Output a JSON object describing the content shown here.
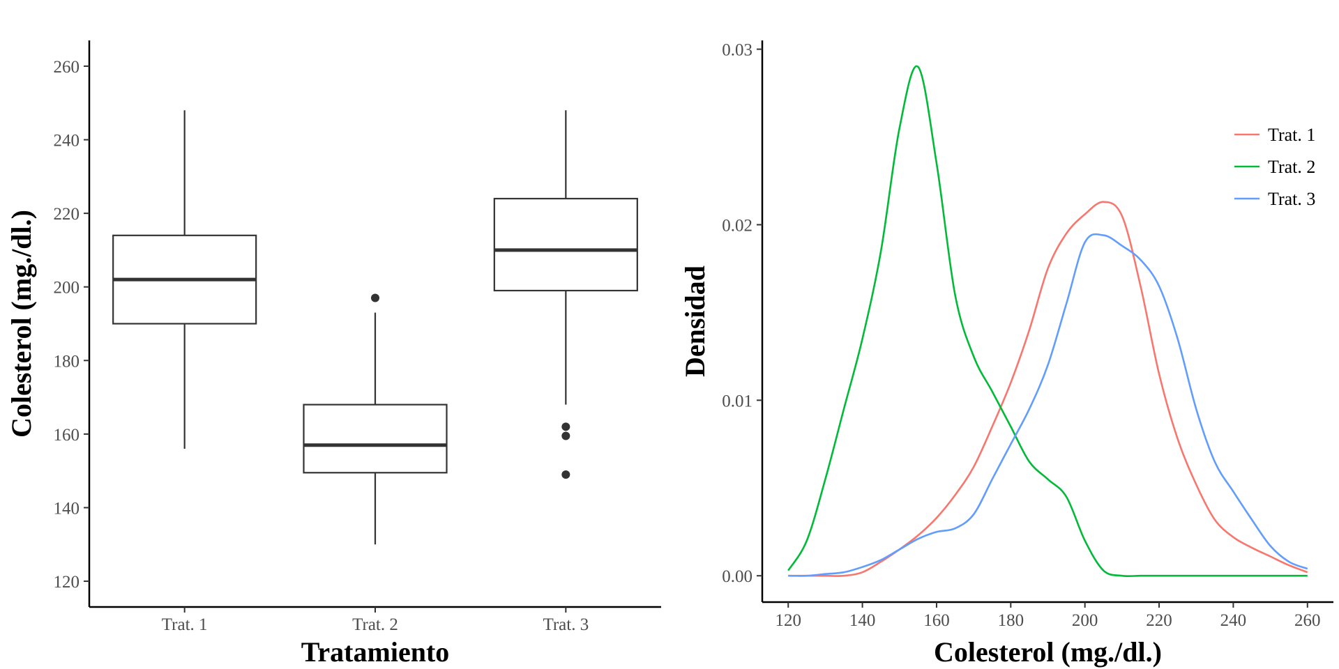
{
  "chart_data": [
    {
      "type": "boxplot",
      "xlabel": "Tratamiento",
      "ylabel": "Colesterol (mg./dl.)",
      "ylim": [
        113,
        267
      ],
      "yticks": [
        120,
        140,
        160,
        180,
        200,
        220,
        240,
        260
      ],
      "grid": false,
      "categories": [
        "Trat. 1",
        "Trat. 2",
        "Trat. 3"
      ],
      "boxes": [
        {
          "name": "Trat. 1",
          "whisker_low": 156,
          "q1": 190,
          "median": 202,
          "q3": 214,
          "whisker_high": 248,
          "outliers": []
        },
        {
          "name": "Trat. 2",
          "whisker_low": 130,
          "q1": 149.5,
          "median": 157,
          "q3": 168,
          "whisker_high": 193,
          "outliers": [
            197
          ]
        },
        {
          "name": "Trat. 3",
          "whisker_low": 168,
          "q1": 199,
          "median": 210,
          "q3": 224,
          "whisker_high": 248,
          "outliers": [
            162,
            159.5,
            149
          ]
        }
      ],
      "box_stroke": "#333333"
    },
    {
      "type": "line",
      "xlabel": "Colesterol (mg./dl.)",
      "ylabel": "Densidad",
      "xlim": [
        113,
        267
      ],
      "ylim": [
        -0.0015,
        0.0305
      ],
      "xticks": [
        120,
        140,
        160,
        180,
        200,
        220,
        240,
        260
      ],
      "yticks": [
        0.0,
        0.01,
        0.02,
        0.03
      ],
      "ytick_labels": [
        "0.00",
        "0.01",
        "0.02",
        "0.03"
      ],
      "grid": false,
      "legend": "right",
      "x": [
        120,
        125,
        130,
        135,
        140,
        145,
        150,
        155,
        160,
        165,
        170,
        175,
        180,
        185,
        190,
        195,
        200,
        205,
        210,
        215,
        220,
        225,
        230,
        235,
        240,
        245,
        250,
        255,
        260
      ],
      "series": [
        {
          "name": "Trat. 1",
          "color": "#F8766D",
          "values": [
            0,
            0,
            0,
            0,
            0.0002,
            0.0008,
            0.0015,
            0.0023,
            0.0033,
            0.0046,
            0.0062,
            0.0085,
            0.011,
            0.014,
            0.0175,
            0.0195,
            0.0206,
            0.0213,
            0.0205,
            0.0165,
            0.0115,
            0.0078,
            0.0052,
            0.0032,
            0.0022,
            0.0016,
            0.0011,
            0.0006,
            0.0002
          ]
        },
        {
          "name": "Trat. 2",
          "color": "#00BA38",
          "values": [
            0.0003,
            0.002,
            0.0055,
            0.0095,
            0.0135,
            0.0185,
            0.0255,
            0.029,
            0.0235,
            0.016,
            0.0125,
            0.0105,
            0.0085,
            0.0065,
            0.0055,
            0.0045,
            0.002,
            0.0003,
            0,
            0,
            0,
            0,
            0,
            0,
            0,
            0,
            0,
            0,
            0
          ]
        },
        {
          "name": "Trat. 3",
          "color": "#619CFF",
          "values": [
            0,
            0,
            0.0001,
            0.0002,
            0.0005,
            0.0009,
            0.0015,
            0.0021,
            0.0025,
            0.0027,
            0.0035,
            0.0055,
            0.0075,
            0.0095,
            0.012,
            0.0155,
            0.019,
            0.0194,
            0.0188,
            0.018,
            0.0165,
            0.0135,
            0.0095,
            0.0065,
            0.0048,
            0.0032,
            0.0017,
            0.0008,
            0.0004
          ]
        }
      ]
    }
  ]
}
